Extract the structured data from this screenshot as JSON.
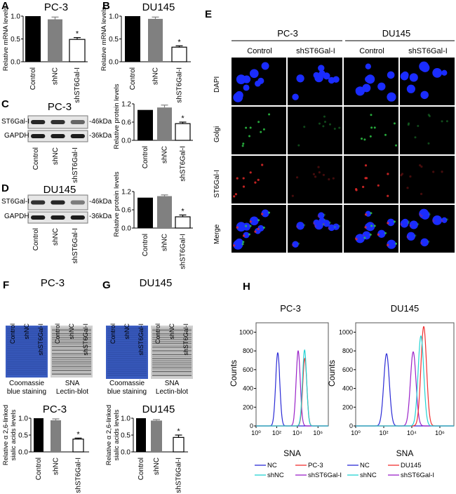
{
  "panels": {
    "A": {
      "letter": "A",
      "title": "PC-3"
    },
    "B": {
      "letter": "B",
      "title": "DU145"
    },
    "C": {
      "letter": "C",
      "title": "PC-3",
      "band1": "ST6Gal-I",
      "band2": "GAPDH",
      "kda1": "-46kDa",
      "kda2": "-36kDa",
      "lanes": [
        "Control",
        "shNC",
        "shST6Gal-I"
      ]
    },
    "D": {
      "letter": "D",
      "title": "DU145",
      "band1": "ST6Gal-I",
      "band2": "GAPDH",
      "kda1": "-46kDa",
      "kda2": "-36kDa",
      "lanes": [
        "Control",
        "shNC",
        "shST6Gal-I"
      ]
    },
    "E": {
      "letter": "E",
      "groups": [
        "PC-3",
        "DU145"
      ],
      "columns": [
        "Control",
        "shST6Gal-I",
        "Control",
        "shST6Gal-I"
      ],
      "rows": [
        "DAPI",
        "Golgi",
        "ST6Gal-I",
        "Merge"
      ]
    },
    "F": {
      "letter": "F",
      "title": "PC-3",
      "lanes": [
        "Control",
        "shNC",
        "shST6Gal-I",
        "Control",
        "shNC",
        "shST6Gal-I"
      ],
      "caption1a": "Coomassie",
      "caption1b": "blue staining",
      "caption2a": "SNA",
      "caption2b": "Lectin-blot"
    },
    "G": {
      "letter": "G",
      "title": "DU145",
      "lanes": [
        "Control",
        "shNC",
        "shST6Gal-I",
        "Control",
        "shNC",
        "shST6Gal-I"
      ],
      "caption1a": "Coomassie",
      "caption1b": "blue staining",
      "caption2a": "SNA",
      "caption2b": "Lectin-blot"
    },
    "H": {
      "letter": "H"
    }
  },
  "colors": {
    "control": "#000000",
    "shNC": "#808080",
    "sh": "#ffffff",
    "NC": "#2b2bd6",
    "shNC_line": "#22d3d3",
    "parent": "#f03030",
    "shST6": "#9a22c8",
    "coomassie": "#3a5cc0",
    "dapi": "#1a2cff"
  },
  "chart_data": [
    {
      "type": "bar",
      "panel": "A",
      "title": "PC-3",
      "ylabel": "Relative mRNA levels",
      "categories": [
        "Control",
        "shNC",
        "shST6Gal-I"
      ],
      "values": [
        1.0,
        0.93,
        0.49
      ],
      "errors": [
        0,
        0.05,
        0.04
      ],
      "ylim": [
        0,
        1.0
      ],
      "yticks": [
        "0.0",
        "0.5",
        "1.0"
      ],
      "significance": [
        "",
        "",
        "*"
      ]
    },
    {
      "type": "bar",
      "panel": "B",
      "title": "DU145",
      "ylabel": "Relative mRNA levels",
      "categories": [
        "Control",
        "shNC",
        "shST6Gal-I"
      ],
      "values": [
        1.0,
        0.94,
        0.32
      ],
      "errors": [
        0,
        0.04,
        0.03
      ],
      "ylim": [
        0,
        1.0
      ],
      "yticks": [
        "0.0",
        "0.5",
        "1.0"
      ],
      "significance": [
        "",
        "",
        "*"
      ]
    },
    {
      "type": "bar",
      "panel": "C",
      "title": "",
      "ylabel": "Relative protein levels",
      "categories": [
        "Control",
        "shNC",
        "shST6Gal-I"
      ],
      "values": [
        1.0,
        1.08,
        0.55
      ],
      "errors": [
        0,
        0.08,
        0.05
      ],
      "ylim": [
        0,
        1.2
      ],
      "yticks": [
        "0.0",
        "0.6",
        "1.2"
      ],
      "significance": [
        "",
        "",
        "*"
      ]
    },
    {
      "type": "bar",
      "panel": "D",
      "title": "",
      "ylabel": "Relative protein levels",
      "categories": [
        "Control",
        "shNC",
        "shST6Gal-I"
      ],
      "values": [
        1.0,
        1.05,
        0.37
      ],
      "errors": [
        0,
        0.04,
        0.06
      ],
      "ylim": [
        0,
        1.2
      ],
      "yticks": [
        "0.0",
        "0.6",
        "1.2"
      ],
      "significance": [
        "",
        "",
        "*"
      ]
    },
    {
      "type": "bar",
      "panel": "F",
      "title": "PC-3",
      "ylabel": "Relative α 2,6-linked",
      "ylabel2": "sialic acids levels",
      "categories": [
        "Control",
        "shNC",
        "shST6Gal-I"
      ],
      "values": [
        1.0,
        0.94,
        0.38
      ],
      "errors": [
        0,
        0.04,
        0.03
      ],
      "ylim": [
        0,
        1.0
      ],
      "yticks": [
        "0.0",
        "0.5",
        "1.0"
      ],
      "significance": [
        "",
        "",
        "*"
      ]
    },
    {
      "type": "bar",
      "panel": "G",
      "title": "DU145",
      "ylabel": "Relative α 2,6-linked",
      "ylabel2": "sialic acids levels",
      "categories": [
        "Control",
        "shNC",
        "shST6Gal-I"
      ],
      "values": [
        1.0,
        0.93,
        0.43
      ],
      "errors": [
        0,
        0.03,
        0.07
      ],
      "ylim": [
        0,
        1.0
      ],
      "yticks": [
        "0.0",
        "0.5",
        "1.0"
      ],
      "significance": [
        "",
        "",
        "*"
      ]
    },
    {
      "type": "line",
      "panel": "H",
      "title": "PC-3",
      "xlabel": "SNA",
      "ylabel": "Counts",
      "xscale": "log",
      "xlim_log10": [
        0,
        7
      ],
      "ylim": [
        0,
        1100
      ],
      "yticks": [
        "0",
        "200",
        "400",
        "600",
        "800",
        "1000"
      ],
      "xticks": [
        "10⁰",
        "10²",
        "10⁴",
        "10⁶"
      ],
      "series": [
        {
          "name": "NC",
          "color_key": "NC",
          "peak_log10": 2.1,
          "peak_count": 780
        },
        {
          "name": "PC-3",
          "color_key": "parent",
          "peak_log10": 4.72,
          "peak_count": 720
        },
        {
          "name": "shNC",
          "color_key": "shNC_line",
          "peak_log10": 4.7,
          "peak_count": 810
        },
        {
          "name": "shST6Gal-I",
          "color_key": "shST6",
          "peak_log10": 4.08,
          "peak_count": 800
        }
      ]
    },
    {
      "type": "line",
      "panel": "H",
      "title": "DU145",
      "xlabel": "SNA",
      "ylabel": "Counts",
      "xscale": "log",
      "xlim_log10": [
        0,
        7
      ],
      "ylim": [
        0,
        1100
      ],
      "yticks": [
        "0",
        "200",
        "400",
        "600",
        "800",
        "1000"
      ],
      "xticks": [
        "10⁰",
        "10²",
        "10⁴",
        "10⁶"
      ],
      "series": [
        {
          "name": "NC",
          "color_key": "NC",
          "peak_log10": 2.2,
          "peak_count": 770
        },
        {
          "name": "DU145",
          "color_key": "parent",
          "peak_log10": 4.85,
          "peak_count": 1060
        },
        {
          "name": "shNC",
          "color_key": "shNC_line",
          "peak_log10": 4.65,
          "peak_count": 960
        },
        {
          "name": "shST6Gal-I",
          "color_key": "shST6",
          "peak_log10": 4.1,
          "peak_count": 790
        }
      ]
    }
  ]
}
